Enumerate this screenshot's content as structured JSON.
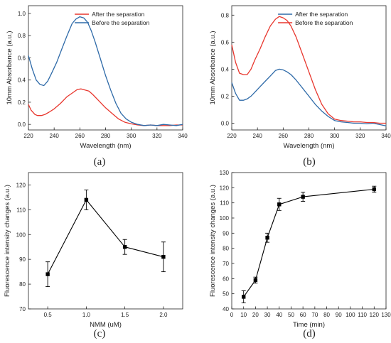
{
  "panel_labels": [
    "(a)",
    "(b)",
    "(c)",
    "(d)"
  ],
  "chart_data": [
    {
      "id": "a",
      "type": "line",
      "xlabel": "Wavelength (nm)",
      "ylabel": "10mm Absorbance (a.u.)",
      "xlim": [
        220,
        340
      ],
      "ylim": [
        -0.05,
        1.07
      ],
      "xticks": [
        220,
        240,
        260,
        280,
        300,
        320,
        340
      ],
      "yticks": [
        0.0,
        0.2,
        0.4,
        0.6,
        0.8,
        1.0
      ],
      "ytick_labels": [
        "0.0",
        "0.2",
        "0.4",
        "0.6",
        "0.8",
        "1.0"
      ],
      "legend": "top-right",
      "series": [
        {
          "name": "After the separation",
          "color": "#e8372e",
          "x": [
            220,
            222,
            225,
            227,
            230,
            233,
            236,
            240,
            245,
            250,
            255,
            258,
            261,
            264,
            267,
            270,
            275,
            280,
            285,
            290,
            295,
            300,
            305,
            310,
            315,
            320,
            325,
            330,
            335,
            340
          ],
          "y": [
            0.18,
            0.13,
            0.09,
            0.08,
            0.08,
            0.09,
            0.11,
            0.14,
            0.19,
            0.25,
            0.29,
            0.315,
            0.32,
            0.31,
            0.3,
            0.27,
            0.21,
            0.15,
            0.1,
            0.05,
            0.02,
            0.005,
            -0.005,
            -0.01,
            -0.005,
            -0.01,
            -0.01,
            -0.01,
            -0.005,
            -0.005
          ]
        },
        {
          "name": "Before the separation",
          "color": "#2e6aa8",
          "x": [
            220,
            223,
            226,
            229,
            232,
            235,
            238,
            242,
            246,
            250,
            254,
            257,
            260,
            263,
            266,
            269,
            272,
            276,
            280,
            284,
            288,
            292,
            296,
            300,
            305,
            310,
            315,
            320,
            325,
            330,
            335,
            340
          ],
          "y": [
            0.62,
            0.5,
            0.4,
            0.36,
            0.35,
            0.39,
            0.46,
            0.56,
            0.68,
            0.8,
            0.91,
            0.95,
            0.97,
            0.96,
            0.92,
            0.84,
            0.74,
            0.59,
            0.44,
            0.31,
            0.19,
            0.1,
            0.05,
            0.02,
            0.0,
            -0.01,
            -0.005,
            -0.01,
            0.0,
            -0.005,
            -0.01,
            0.0
          ]
        }
      ]
    },
    {
      "id": "b",
      "type": "line",
      "xlabel": "Wavelength (nm)",
      "ylabel": "10mm Absorbance (a.u.)",
      "xlim": [
        220,
        340
      ],
      "ylim": [
        -0.05,
        0.87
      ],
      "xticks": [
        220,
        240,
        260,
        280,
        300,
        320,
        340
      ],
      "yticks": [
        0.0,
        0.2,
        0.4,
        0.6,
        0.8
      ],
      "ytick_labels": [
        "0.0",
        "0.2",
        "0.4",
        "0.6",
        "0.8"
      ],
      "legend": "top-right",
      "series": [
        {
          "name": "After the separation",
          "color": "#2e6aa8",
          "x": [
            220,
            223,
            226,
            229,
            232,
            235,
            238,
            242,
            246,
            250,
            254,
            257,
            260,
            263,
            266,
            270,
            275,
            280,
            285,
            290,
            295,
            300,
            305,
            310,
            315,
            320,
            325,
            330,
            335,
            340
          ],
          "y": [
            0.3,
            0.22,
            0.17,
            0.17,
            0.18,
            0.2,
            0.23,
            0.27,
            0.31,
            0.35,
            0.39,
            0.4,
            0.395,
            0.38,
            0.36,
            0.32,
            0.26,
            0.2,
            0.14,
            0.09,
            0.05,
            0.02,
            0.01,
            0.005,
            0.0,
            0.0,
            -0.005,
            0.0,
            -0.01,
            -0.02
          ]
        },
        {
          "name": "Before the separation",
          "color": "#e8372e",
          "x": [
            220,
            223,
            226,
            229,
            232,
            235,
            238,
            242,
            246,
            250,
            254,
            257,
            260,
            263,
            266,
            270,
            275,
            280,
            285,
            290,
            295,
            300,
            305,
            310,
            315,
            320,
            325,
            330,
            335,
            340
          ],
          "y": [
            0.58,
            0.45,
            0.37,
            0.36,
            0.36,
            0.4,
            0.47,
            0.55,
            0.64,
            0.72,
            0.77,
            0.79,
            0.78,
            0.76,
            0.72,
            0.64,
            0.51,
            0.38,
            0.25,
            0.14,
            0.07,
            0.03,
            0.02,
            0.015,
            0.01,
            0.01,
            0.005,
            0.005,
            0.0,
            0.0
          ]
        }
      ]
    },
    {
      "id": "c",
      "type": "line",
      "xlabel": "NMM (uM)",
      "ylabel": "Fluorescence intensity changes (a.u.)",
      "xlim": [
        0.25,
        2.25
      ],
      "ylim": [
        70,
        125
      ],
      "xticks": [
        0.5,
        1.0,
        1.5,
        2.0
      ],
      "xtick_labels": [
        "0.5",
        "1.0",
        "1.5",
        "2.0"
      ],
      "yticks": [
        70,
        80,
        90,
        100,
        110,
        120
      ],
      "series": [
        {
          "name": "",
          "color": "#000000",
          "marker": "square",
          "x": [
            0.5,
            1.0,
            1.5,
            2.0
          ],
          "y": [
            84,
            114,
            95,
            91
          ],
          "error": [
            5,
            4,
            3,
            6
          ]
        }
      ]
    },
    {
      "id": "d",
      "type": "line",
      "xlabel": "Time (min)",
      "ylabel": "Fluorescence intensity changes (a.u.)",
      "xlim": [
        0,
        130
      ],
      "ylim": [
        40,
        130
      ],
      "xticks": [
        0,
        10,
        20,
        30,
        40,
        50,
        60,
        70,
        80,
        90,
        100,
        110,
        120,
        130
      ],
      "yticks": [
        40,
        50,
        60,
        70,
        80,
        90,
        100,
        110,
        120,
        130
      ],
      "series": [
        {
          "name": "",
          "color": "#000000",
          "marker": "square",
          "x": [
            10,
            20,
            30,
            40,
            60,
            120
          ],
          "y": [
            48,
            59,
            87,
            109,
            114,
            119
          ],
          "error": [
            4,
            2,
            3,
            4,
            3,
            2
          ]
        }
      ]
    }
  ]
}
